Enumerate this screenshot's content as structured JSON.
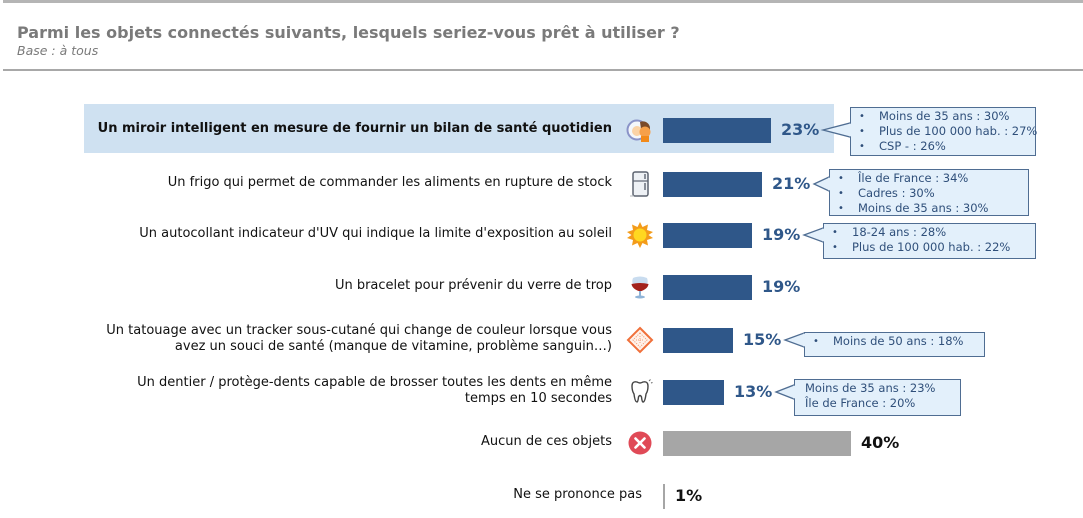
{
  "header": {
    "title": "Parmi les objets connectés suivants, lesquels seriez-vous prêt à utiliser ?",
    "subtitle": "Base : à tous"
  },
  "colors": {
    "bar_primary": "#2f5789",
    "bar_neutral": "#a6a6a6",
    "highlight_bg": "#cfe1f1",
    "callout_bg": "#e3f0fb",
    "callout_border": "#4f6d92",
    "title_gray": "#7a7a7a"
  },
  "chart_data": {
    "type": "bar",
    "orientation": "horizontal",
    "title": "Parmi les objets connectés suivants, lesquels seriez-vous prêt à utiliser ?",
    "subtitle": "Base : à tous",
    "unit": "%",
    "xlim": [
      0,
      40
    ],
    "categories": [
      "Un miroir intelligent en mesure de fournir un bilan de santé quotidien",
      "Un frigo qui permet de commander les aliments en rupture de stock",
      "Un autocollant indicateur d'UV qui indique la limite d'exposition au soleil",
      "Un bracelet pour prévenir du verre de trop",
      "Un tatouage avec un tracker sous-cutané qui change de couleur lorsque vous avez un souci de santé (manque de vitamine, problème sanguin…)",
      "Un dentier / protège-dents capable de brosser toutes les dents en même temps en 10 secondes",
      "Aucun de ces objets",
      "Ne se prononce pas"
    ],
    "values": [
      23,
      21,
      19,
      19,
      15,
      13,
      40,
      1
    ],
    "value_labels": [
      "23%",
      "21%",
      "19%",
      "19%",
      "15%",
      "13%",
      "40%",
      "1%"
    ],
    "rows": [
      {
        "label_lines": [
          "Un miroir intelligent en mesure de fournir un bilan de santé quotidien"
        ],
        "value": 23,
        "value_label": "23%",
        "icon": "smart-mirror-icon",
        "highlighted": true,
        "style": "primary",
        "callout": {
          "bulleted": true,
          "items": [
            "Moins de 35 ans : 30%",
            "Plus de 100 000 hab. : 27%",
            "CSP - : 26%"
          ]
        }
      },
      {
        "label_lines": [
          "Un frigo qui permet de commander les aliments en rupture de stock"
        ],
        "value": 21,
        "value_label": "21%",
        "icon": "fridge-icon",
        "highlighted": false,
        "style": "primary",
        "callout": {
          "bulleted": true,
          "items": [
            "Île de France : 34%",
            "Cadres : 30%",
            "Moins de 35 ans : 30%"
          ]
        }
      },
      {
        "label_lines": [
          "Un autocollant indicateur d'UV qui indique la limite d'exposition au soleil"
        ],
        "value": 19,
        "value_label": "19%",
        "icon": "sun-icon",
        "highlighted": false,
        "style": "primary",
        "callout": {
          "bulleted": true,
          "items": [
            "18-24 ans : 28%",
            "Plus de 100 000 hab. : 22%"
          ]
        }
      },
      {
        "label_lines": [
          "Un bracelet pour prévenir du verre de trop"
        ],
        "value": 19,
        "value_label": "19%",
        "icon": "wine-glass-icon",
        "highlighted": false,
        "style": "primary",
        "callout": null
      },
      {
        "label_lines": [
          "Un tatouage avec un tracker sous-cutané qui change de couleur lorsque vous",
          "avez un souci de santé (manque de vitamine, problème sanguin…)"
        ],
        "value": 15,
        "value_label": "15%",
        "icon": "tattoo-diamond-icon",
        "highlighted": false,
        "style": "primary",
        "callout": {
          "bulleted": true,
          "items": [
            "Moins de 50 ans : 18%"
          ]
        }
      },
      {
        "label_lines": [
          "Un dentier / protège-dents capable de brosser toutes les dents en même",
          "temps en 10 secondes"
        ],
        "value": 13,
        "value_label": "13%",
        "icon": "tooth-icon",
        "highlighted": false,
        "style": "primary",
        "callout": {
          "bulleted": false,
          "items": [
            "Moins de 35 ans : 23%",
            "Île de France : 20%"
          ]
        }
      },
      {
        "label_lines": [
          "Aucun de ces objets"
        ],
        "value": 40,
        "value_label": "40%",
        "icon": "cross-circle-icon",
        "highlighted": false,
        "style": "neutral",
        "callout": null
      },
      {
        "label_lines": [
          "Ne se prononce pas"
        ],
        "value": 1,
        "value_label": "1%",
        "icon": null,
        "highlighted": false,
        "style": "neutral",
        "callout": null
      }
    ]
  }
}
